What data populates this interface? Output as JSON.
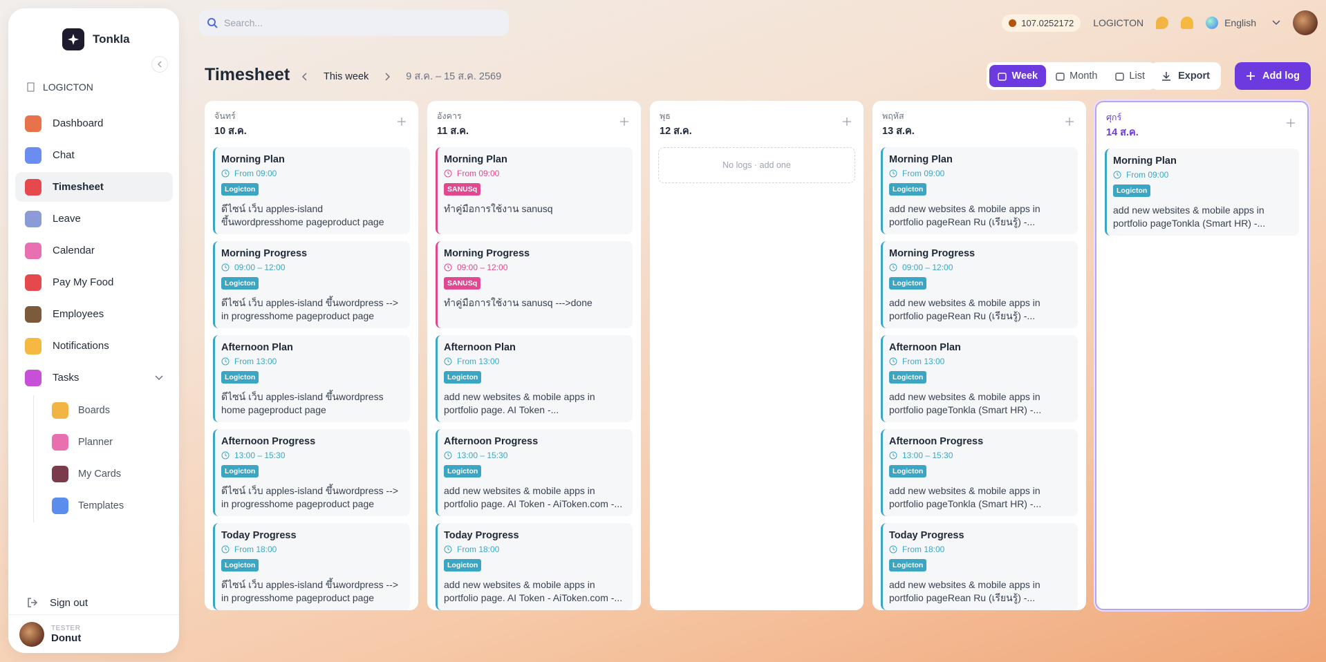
{
  "sidebar": {
    "brand": "Tonkla",
    "org": "LOGICTON",
    "nav": [
      "Dashboard",
      "Chat",
      "Timesheet",
      "Leave",
      "Calendar",
      "Pay My Food",
      "Employees",
      "Notifications"
    ],
    "tasks": "Tasks",
    "sub": [
      "Boards",
      "Planner",
      "My Cards",
      "Templates"
    ],
    "sign_out": "Sign out",
    "user": {
      "role": "TESTER",
      "name": "Donut"
    }
  },
  "topbar": {
    "search": "Search...",
    "balance": "107.0252172",
    "org": "LOGICTON",
    "language": "English"
  },
  "header": {
    "title": "Timesheet",
    "period": "This week",
    "range": "9 ส.ค. – 15 ส.ค. 2569",
    "views": [
      "Week",
      "Month",
      "List"
    ],
    "export": "Export",
    "add": "Add log"
  },
  "days": [
    {
      "weekday": "จันทร์",
      "date": "10 ส.ค.",
      "logs": [
        {
          "title": "Morning Plan",
          "time": "From 09:00",
          "tag": "Logicton",
          "color": "#3aa6c4",
          "text": "ดีไซน์ เว็บ apples-island ขึ้นwordpresshome pageproduct page"
        },
        {
          "title": "Morning Progress",
          "time": "09:00 – 12:00",
          "tag": "Logicton",
          "color": "#3aa6c4",
          "text": "ดีไซน์ เว็บ apples-island ขึ้นwordpress --> in progresshome pageproduct page"
        },
        {
          "title": "Afternoon Plan",
          "time": "From 13:00",
          "tag": "Logicton",
          "color": "#3aa6c4",
          "text": "ดีไซน์ เว็บ apples-island ขึ้นwordpress home pageproduct page"
        },
        {
          "title": "Afternoon Progress",
          "time": "13:00 – 15:30",
          "tag": "Logicton",
          "color": "#3aa6c4",
          "text": "ดีไซน์ เว็บ apples-island ขึ้นwordpress --> in progresshome pageproduct page"
        },
        {
          "title": "Today Progress",
          "time": "From 18:00",
          "tag": "Logicton",
          "color": "#3aa6c4",
          "text": "ดีไซน์ เว็บ apples-island ขึ้นwordpress --> in progresshome pageproduct page"
        }
      ]
    },
    {
      "weekday": "อังคาร",
      "date": "11 ส.ค.",
      "logs": [
        {
          "title": "Morning Plan",
          "time": "From 09:00",
          "tag": "SANUSq",
          "color": "#e0488f",
          "text": "ทำคู่มือการใช้งาน sanusq"
        },
        {
          "title": "Morning Progress",
          "time": "09:00 – 12:00",
          "tag": "SANUSq",
          "color": "#e0488f",
          "text": "ทำคู่มือการใช้งาน sanusq --->done"
        },
        {
          "title": "Afternoon Plan",
          "time": "From 13:00",
          "tag": "Logicton",
          "color": "#3aa6c4",
          "text": "add new websites & mobile apps in portfolio page. AI Token -..."
        },
        {
          "title": "Afternoon Progress",
          "time": "13:00 – 15:30",
          "tag": "Logicton",
          "color": "#3aa6c4",
          "text": "add new websites & mobile apps in portfolio page. AI Token - AiToken.com -..."
        },
        {
          "title": "Today Progress",
          "time": "From 18:00",
          "tag": "Logicton",
          "color": "#3aa6c4",
          "text": "add new websites & mobile apps in portfolio page. AI Token - AiToken.com -..."
        }
      ]
    },
    {
      "weekday": "พุธ",
      "date": "12 ส.ค.",
      "empty": "No logs · add one",
      "logs": []
    },
    {
      "weekday": "พฤหัส",
      "date": "13 ส.ค.",
      "logs": [
        {
          "title": "Morning Plan",
          "time": "From 09:00",
          "tag": "Logicton",
          "color": "#3aa6c4",
          "text": "add new websites & mobile apps in portfolio pageRean Ru (เรียนรู้) -..."
        },
        {
          "title": "Morning Progress",
          "time": "09:00 – 12:00",
          "tag": "Logicton",
          "color": "#3aa6c4",
          "text": "add new websites & mobile apps in portfolio pageRean Ru (เรียนรู้) -..."
        },
        {
          "title": "Afternoon Plan",
          "time": "From 13:00",
          "tag": "Logicton",
          "color": "#3aa6c4",
          "text": "add new websites & mobile apps in portfolio pageTonkla (Smart HR) -..."
        },
        {
          "title": "Afternoon Progress",
          "time": "13:00 – 15:30",
          "tag": "Logicton",
          "color": "#3aa6c4",
          "text": "add new websites & mobile apps in portfolio pageTonkla (Smart HR) -..."
        },
        {
          "title": "Today Progress",
          "time": "From 18:00",
          "tag": "Logicton",
          "color": "#3aa6c4",
          "text": "add new websites & mobile apps in portfolio pageRean Ru (เรียนรู้) -..."
        }
      ]
    },
    {
      "weekday": "ศุกร์",
      "date": "14 ส.ค.",
      "logs": [
        {
          "title": "Morning Plan",
          "time": "From 09:00",
          "tag": "Logicton",
          "color": "#3aa6c4",
          "text": "add new websites & mobile apps in portfolio pageTonkla (Smart HR) -..."
        }
      ]
    }
  ]
}
